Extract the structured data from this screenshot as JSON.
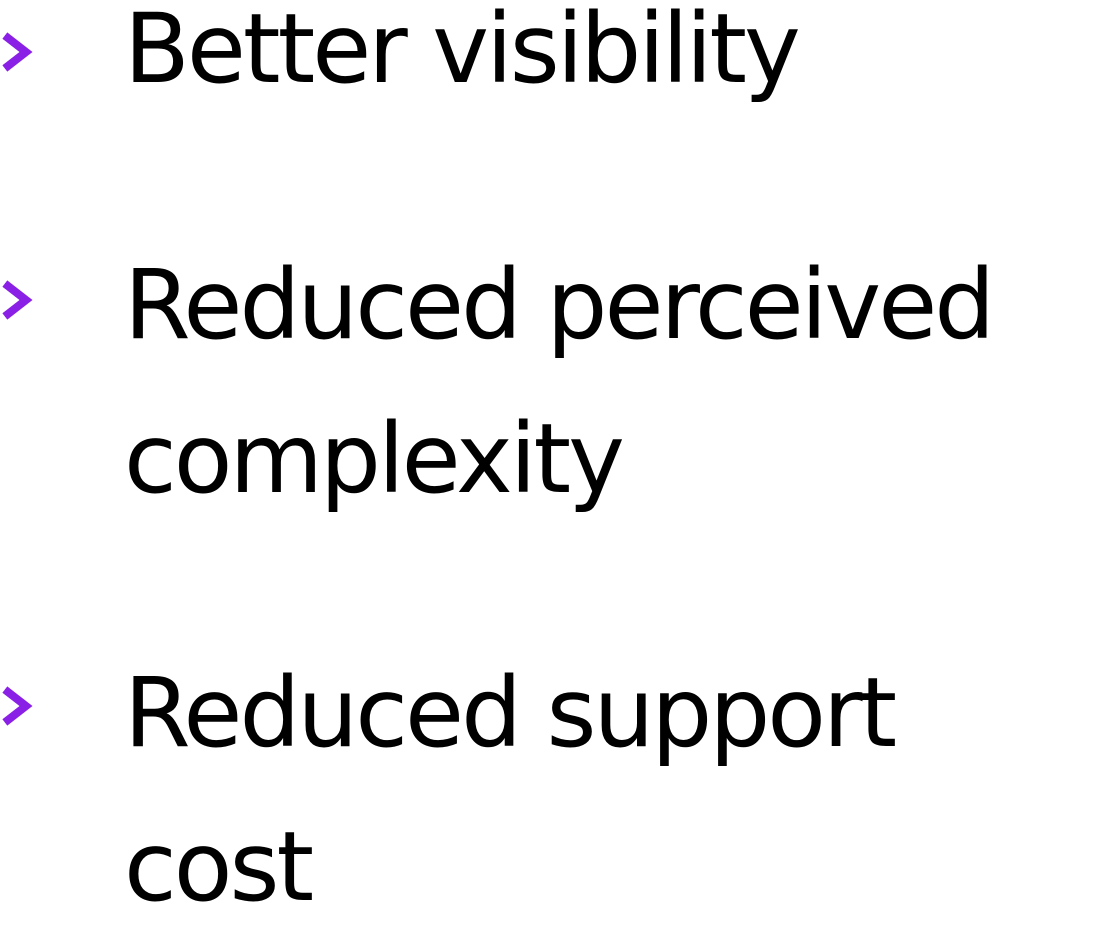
{
  "bullet_color": "#8a1fe6",
  "items": [
    {
      "icon": "chevron-right-icon",
      "lines": [
        "Better visibility"
      ]
    },
    {
      "icon": "chevron-right-icon",
      "lines": [
        "Reduced perceived",
        "complexity"
      ]
    },
    {
      "icon": "chevron-right-icon",
      "lines": [
        "Reduced support",
        "cost"
      ]
    }
  ]
}
